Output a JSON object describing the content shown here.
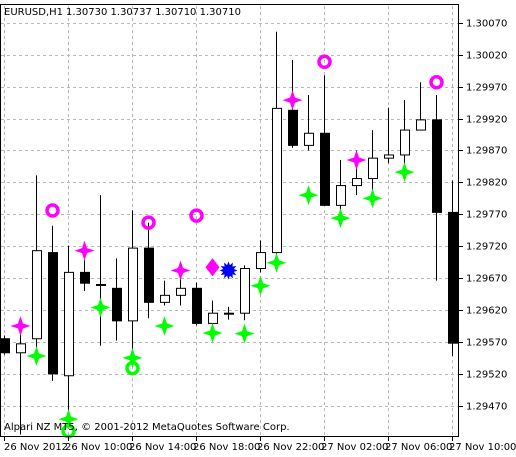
{
  "chart_data": {
    "type": "candlestick",
    "title": "EURUSD,H1",
    "subtitle": "1.30730 1.30737 1.30710 1.30710",
    "footer": "Alpari NZ MT5, © 2001-2012 MetaQuotes Software Corp.",
    "categories": [
      "26 Nov 2012",
      null,
      null,
      null,
      "26 Nov 10:00",
      null,
      null,
      null,
      "26 Nov 14:00",
      null,
      null,
      null,
      "26 Nov 18:00",
      null,
      null,
      null,
      "26 Nov 22:00",
      null,
      null,
      null,
      "27 Nov 02:00",
      null,
      null,
      null,
      "27 Nov 06:00",
      null,
      null,
      null,
      "27 Nov 10:00"
    ],
    "open": [
      1.29575,
      1.29553,
      1.29575,
      1.2971,
      1.29517,
      1.29679,
      1.2966,
      1.29654,
      1.29603,
      1.29717,
      1.29632,
      1.29643,
      1.29654,
      1.29599,
      1.29615,
      1.29615,
      1.29685,
      1.2971,
      1.29933,
      1.29878,
      1.29897,
      1.29784,
      1.29815,
      1.29826,
      1.29858,
      1.29863,
      1.29902,
      1.29918,
      1.29773
    ],
    "high": [
      1.2958,
      1.29591,
      1.29831,
      1.29752,
      1.29721,
      1.29698,
      1.298,
      1.29701,
      1.29776,
      1.29757,
      1.29666,
      1.29674,
      1.29663,
      1.29635,
      1.29625,
      1.2969,
      1.29729,
      1.30056,
      1.30012,
      1.29957,
      1.29988,
      1.29855,
      1.2987,
      1.29902,
      1.29937,
      1.29949,
      1.29977,
      1.29957,
      1.29823
    ],
    "low": [
      1.2955,
      1.29425,
      1.29548,
      1.29509,
      1.29462,
      1.2965,
      1.29564,
      1.29572,
      1.29548,
      1.29607,
      1.29627,
      1.29627,
      1.29596,
      1.2958,
      1.29605,
      1.29604,
      1.29679,
      1.29701,
      1.29874,
      1.2987,
      1.29784,
      1.29753,
      1.298,
      1.29808,
      1.2985,
      1.29847,
      1.29902,
      1.29666,
      1.29548
    ],
    "close": [
      1.29553,
      1.29567,
      1.29713,
      1.2952,
      1.29679,
      1.29662,
      1.29659,
      1.29603,
      1.29717,
      1.29632,
      1.29643,
      1.29654,
      1.29599,
      1.29615,
      1.29615,
      1.29685,
      1.2971,
      1.29936,
      1.29878,
      1.29897,
      1.29784,
      1.29815,
      1.29826,
      1.29858,
      1.29863,
      1.29902,
      1.29918,
      1.29773,
      1.29568
    ],
    "up_color": "#ffffff",
    "down_color": "#000000",
    "markers": [
      {
        "symbol": "ring",
        "color": "#ff00ff",
        "values": [
          null,
          null,
          null,
          1.29776,
          null,
          null,
          null,
          null,
          null,
          1.29757,
          null,
          null,
          1.29768,
          null,
          null,
          null,
          null,
          null,
          null,
          null,
          1.30009,
          null,
          null,
          null,
          null,
          null,
          null,
          1.29977,
          null
        ]
      },
      {
        "symbol": "ring",
        "color": "#00ff00",
        "values": [
          null,
          null,
          null,
          null,
          1.2943,
          null,
          null,
          null,
          1.29529,
          null,
          null,
          null,
          null,
          null,
          null,
          null,
          null,
          null,
          null,
          null,
          null,
          null,
          null,
          null,
          null,
          null,
          null,
          null,
          null
        ]
      },
      {
        "symbol": "star",
        "color": "#ff00ff",
        "values": [
          null,
          1.29595,
          null,
          null,
          null,
          1.29713,
          null,
          null,
          null,
          null,
          null,
          1.29682,
          null,
          null,
          null,
          null,
          null,
          null,
          1.29949,
          null,
          null,
          null,
          1.29855,
          null,
          null,
          null,
          null,
          null,
          null
        ]
      },
      {
        "symbol": "star",
        "color": "#00ff00",
        "values": [
          null,
          null,
          1.29548,
          null,
          1.29449,
          null,
          1.29624,
          null,
          1.29545,
          null,
          1.29595,
          null,
          null,
          1.29584,
          null,
          1.29583,
          1.29658,
          1.29694,
          null,
          1.298,
          null,
          1.29764,
          null,
          1.29795,
          null,
          1.29836,
          null,
          null,
          null
        ]
      },
      {
        "symbol": "diamond",
        "color": "#ff00ff",
        "values": [
          null,
          null,
          null,
          null,
          null,
          null,
          null,
          null,
          null,
          null,
          null,
          null,
          null,
          1.29687,
          null,
          null,
          null,
          null,
          null,
          null,
          null,
          null,
          null,
          null,
          null,
          null,
          null,
          null,
          null
        ]
      },
      {
        "symbol": "burst",
        "color": "#0000ff",
        "values": [
          null,
          null,
          null,
          null,
          null,
          null,
          null,
          null,
          null,
          null,
          null,
          null,
          null,
          null,
          1.29682,
          null,
          null,
          null,
          null,
          null,
          null,
          null,
          null,
          null,
          null,
          null,
          null,
          null,
          null
        ]
      }
    ],
    "ylim": [
      1.29421,
      1.30098
    ],
    "yticks": [
      {
        "value": 1.2947,
        "label": "1.29470"
      },
      {
        "value": 1.2952,
        "label": "1.29520"
      },
      {
        "value": 1.2957,
        "label": "1.29570"
      },
      {
        "value": 1.2962,
        "label": "1.29620"
      },
      {
        "value": 1.2967,
        "label": "1.29670"
      },
      {
        "value": 1.2972,
        "label": "1.29720"
      },
      {
        "value": 1.2977,
        "label": "1.29770"
      },
      {
        "value": 1.2982,
        "label": "1.29820"
      },
      {
        "value": 1.2987,
        "label": "1.29870"
      },
      {
        "value": 1.2992,
        "label": "1.29920"
      },
      {
        "value": 1.2997,
        "label": "1.29970"
      },
      {
        "value": 1.3002,
        "label": "1.30020"
      },
      {
        "value": 1.3007,
        "label": "1.30070"
      }
    ],
    "grid": true
  }
}
